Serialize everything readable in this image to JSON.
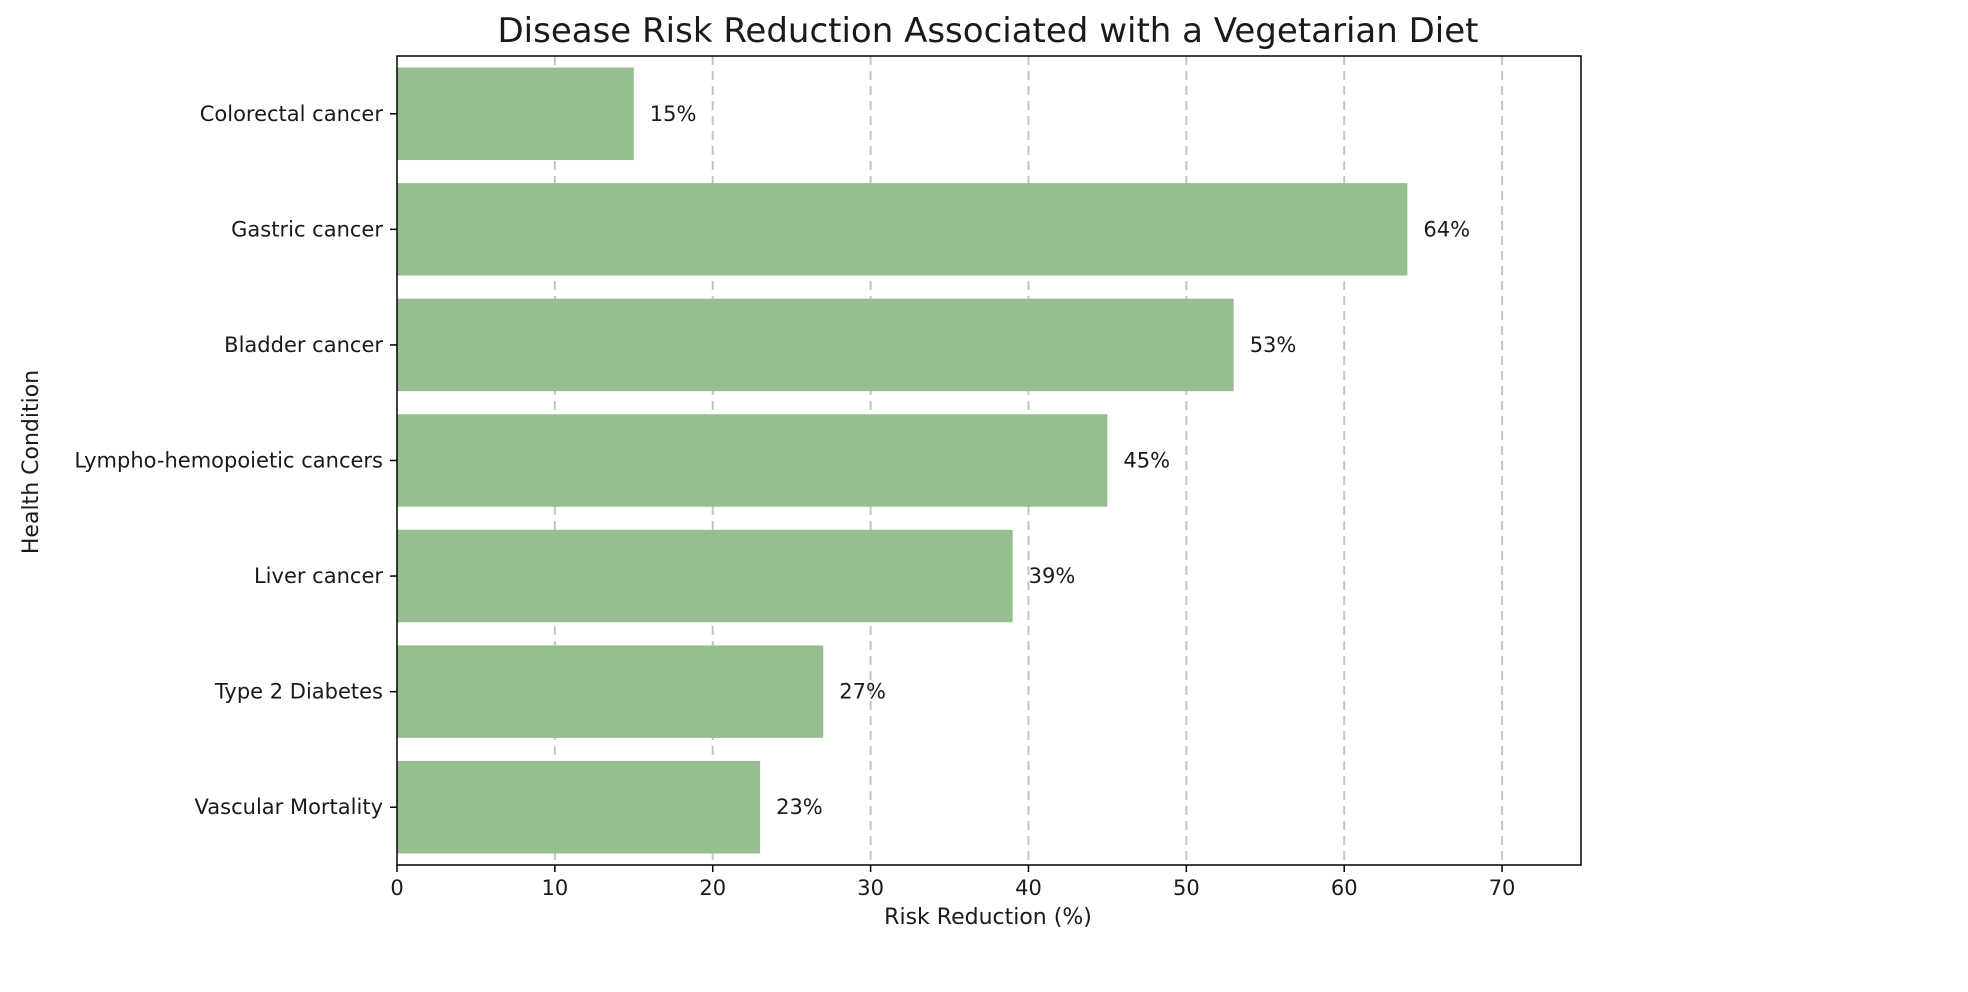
{
  "chart_data": {
    "type": "bar",
    "orientation": "horizontal",
    "title": "Disease Risk Reduction Associated with a Vegetarian Diet",
    "xlabel": "Risk Reduction (%)",
    "ylabel": "Health Condition",
    "categories": [
      "Colorectal cancer",
      "Gastric cancer",
      "Bladder cancer",
      "Lympho-hemopoietic cancers",
      "Liver cancer",
      "Type 2 Diabetes",
      "Vascular Mortality"
    ],
    "values": [
      15,
      64,
      53,
      45,
      39,
      27,
      23
    ],
    "value_labels": [
      "15%",
      "64%",
      "53%",
      "45%",
      "39%",
      "27%",
      "23%"
    ],
    "xlim": [
      0,
      75
    ],
    "xticks": [
      0,
      10,
      20,
      30,
      40,
      50,
      60,
      70
    ],
    "xtick_labels": [
      "0",
      "10",
      "20",
      "30",
      "40",
      "50",
      "60",
      "70"
    ],
    "grid": "x-dashed",
    "bar_color": "#96bf8f",
    "grid_color": "#c4c4c4",
    "legend": "none"
  }
}
